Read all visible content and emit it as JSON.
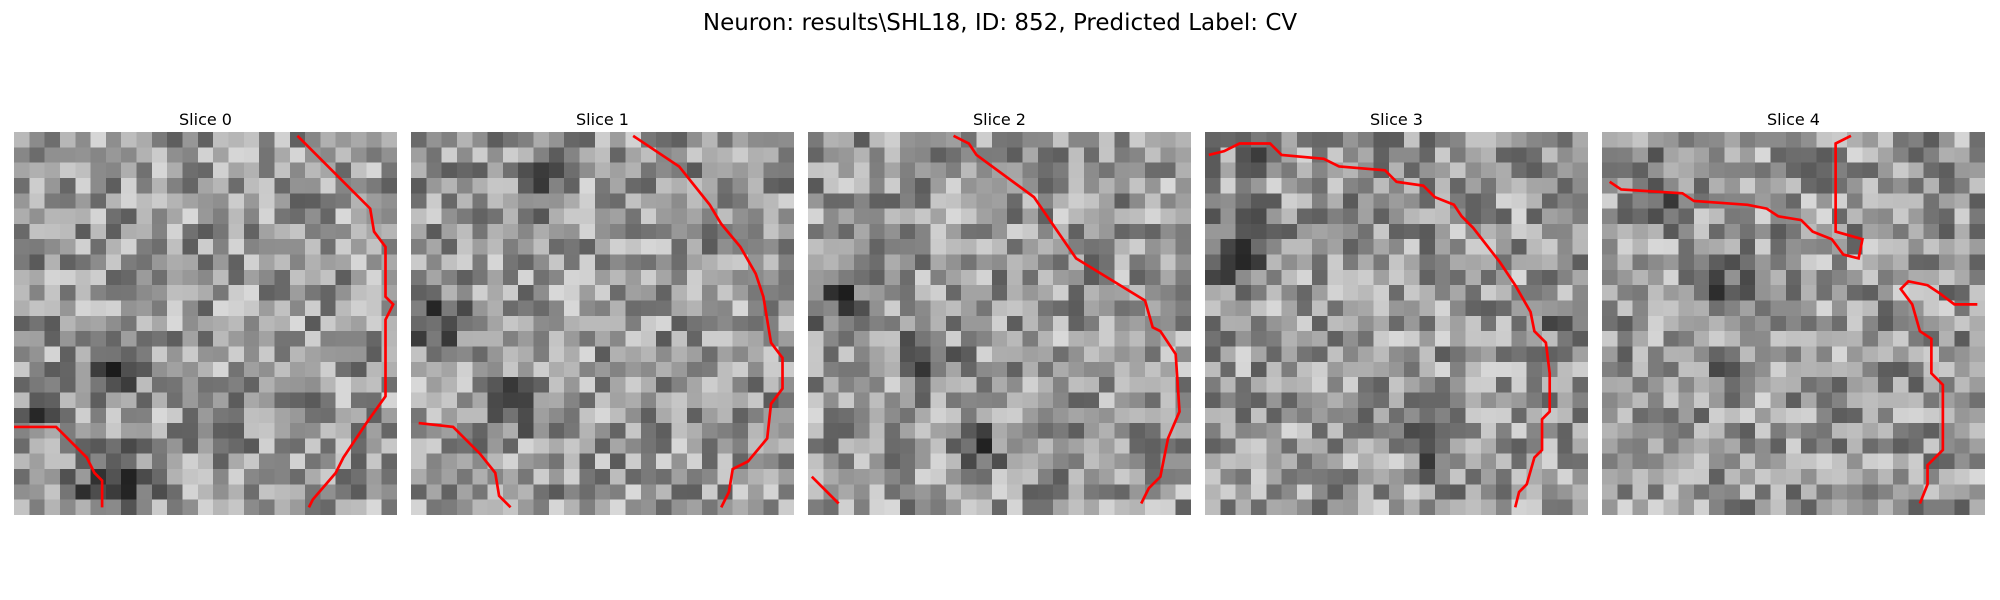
{
  "figure": {
    "title": "Neuron: results\\SHL18, ID: 852, Predicted Label: CV"
  },
  "style": {
    "contour_color": "#ff0000",
    "colormap": "gray",
    "background": "#ffffff"
  },
  "panels": [
    {
      "title": "Slice 0",
      "brightness_seed": 11,
      "dark_regions": [
        [
          0.25,
          0.92,
          0.16
        ],
        [
          0.05,
          0.75,
          0.08
        ],
        [
          0.28,
          0.62,
          0.1
        ]
      ],
      "contours": [
        [
          [
            0.74,
            0.01
          ],
          [
            0.93,
            0.2
          ],
          [
            0.94,
            0.26
          ],
          [
            0.97,
            0.3
          ],
          [
            0.97,
            0.43
          ],
          [
            0.99,
            0.45
          ],
          [
            0.97,
            0.49
          ],
          [
            0.97,
            0.69
          ],
          [
            0.92,
            0.76
          ],
          [
            0.9,
            0.79
          ],
          [
            0.86,
            0.85
          ],
          [
            0.84,
            0.89
          ],
          [
            0.78,
            0.96
          ],
          [
            0.77,
            0.98
          ]
        ],
        [
          [
            0.0,
            0.77
          ],
          [
            0.11,
            0.77
          ],
          [
            0.19,
            0.85
          ],
          [
            0.21,
            0.89
          ],
          [
            0.23,
            0.91
          ],
          [
            0.23,
            0.98
          ]
        ]
      ]
    },
    {
      "title": "Slice 1",
      "brightness_seed": 23,
      "dark_regions": [
        [
          0.08,
          0.5,
          0.12
        ],
        [
          0.25,
          0.72,
          0.1
        ],
        [
          0.35,
          0.15,
          0.08
        ]
      ],
      "contours": [
        [
          [
            0.58,
            0.01
          ],
          [
            0.7,
            0.09
          ],
          [
            0.74,
            0.14
          ],
          [
            0.78,
            0.19
          ],
          [
            0.81,
            0.24
          ],
          [
            0.86,
            0.3
          ],
          [
            0.9,
            0.37
          ],
          [
            0.92,
            0.43
          ],
          [
            0.94,
            0.55
          ],
          [
            0.97,
            0.59
          ],
          [
            0.97,
            0.67
          ],
          [
            0.94,
            0.71
          ],
          [
            0.93,
            0.8
          ],
          [
            0.88,
            0.86
          ],
          [
            0.84,
            0.88
          ],
          [
            0.83,
            0.94
          ],
          [
            0.81,
            0.98
          ]
        ],
        [
          [
            0.02,
            0.76
          ],
          [
            0.11,
            0.77
          ],
          [
            0.18,
            0.84
          ],
          [
            0.22,
            0.89
          ],
          [
            0.23,
            0.95
          ],
          [
            0.26,
            0.98
          ]
        ]
      ]
    },
    {
      "title": "Slice 2",
      "brightness_seed": 37,
      "dark_regions": [
        [
          0.08,
          0.45,
          0.12
        ],
        [
          0.3,
          0.6,
          0.1
        ],
        [
          0.45,
          0.82,
          0.08
        ]
      ],
      "contours": [
        [
          [
            0.38,
            0.01
          ],
          [
            0.42,
            0.03
          ],
          [
            0.44,
            0.06
          ],
          [
            0.59,
            0.17
          ],
          [
            0.7,
            0.33
          ],
          [
            0.88,
            0.44
          ],
          [
            0.9,
            0.51
          ],
          [
            0.92,
            0.52
          ],
          [
            0.96,
            0.58
          ],
          [
            0.97,
            0.73
          ],
          [
            0.94,
            0.8
          ],
          [
            0.92,
            0.9
          ],
          [
            0.89,
            0.93
          ],
          [
            0.87,
            0.97
          ]
        ],
        [
          [
            0.01,
            0.9
          ],
          [
            0.08,
            0.97
          ]
        ]
      ]
    },
    {
      "title": "Slice 3",
      "brightness_seed": 53,
      "dark_regions": [
        [
          0.08,
          0.3,
          0.14
        ],
        [
          0.15,
          0.05,
          0.07
        ],
        [
          0.6,
          0.8,
          0.12
        ],
        [
          0.92,
          0.48,
          0.06
        ]
      ],
      "contours": [
        [
          [
            0.01,
            0.06
          ],
          [
            0.05,
            0.05
          ],
          [
            0.09,
            0.03
          ],
          [
            0.17,
            0.03
          ],
          [
            0.2,
            0.06
          ],
          [
            0.31,
            0.07
          ],
          [
            0.35,
            0.09
          ],
          [
            0.47,
            0.1
          ],
          [
            0.5,
            0.13
          ],
          [
            0.57,
            0.14
          ],
          [
            0.6,
            0.17
          ],
          [
            0.65,
            0.19
          ],
          [
            0.67,
            0.22
          ],
          [
            0.7,
            0.25
          ],
          [
            0.77,
            0.34
          ],
          [
            0.81,
            0.4
          ],
          [
            0.85,
            0.47
          ],
          [
            0.86,
            0.52
          ],
          [
            0.89,
            0.55
          ],
          [
            0.9,
            0.63
          ],
          [
            0.9,
            0.73
          ],
          [
            0.88,
            0.75
          ],
          [
            0.88,
            0.83
          ],
          [
            0.86,
            0.85
          ],
          [
            0.84,
            0.92
          ],
          [
            0.82,
            0.94
          ],
          [
            0.81,
            0.98
          ]
        ]
      ]
    },
    {
      "title": "Slice 4",
      "brightness_seed": 71,
      "dark_regions": [
        [
          0.12,
          0.1,
          0.09
        ],
        [
          0.3,
          0.4,
          0.12
        ],
        [
          0.32,
          0.62,
          0.08
        ],
        [
          0.15,
          0.2,
          0.07
        ]
      ],
      "contours": [
        [
          [
            0.02,
            0.13
          ],
          [
            0.05,
            0.15
          ],
          [
            0.21,
            0.16
          ],
          [
            0.24,
            0.18
          ],
          [
            0.38,
            0.19
          ],
          [
            0.43,
            0.2
          ],
          [
            0.46,
            0.22
          ],
          [
            0.52,
            0.23
          ],
          [
            0.55,
            0.26
          ],
          [
            0.6,
            0.28
          ],
          [
            0.63,
            0.32
          ],
          [
            0.67,
            0.33
          ],
          [
            0.68,
            0.28
          ],
          [
            0.61,
            0.26
          ],
          [
            0.61,
            0.03
          ],
          [
            0.65,
            0.01
          ]
        ],
        [
          [
            0.98,
            0.45
          ],
          [
            0.92,
            0.45
          ],
          [
            0.88,
            0.42
          ],
          [
            0.85,
            0.4
          ],
          [
            0.8,
            0.39
          ],
          [
            0.78,
            0.41
          ],
          [
            0.81,
            0.45
          ],
          [
            0.83,
            0.52
          ],
          [
            0.86,
            0.54
          ],
          [
            0.86,
            0.63
          ],
          [
            0.89,
            0.66
          ],
          [
            0.89,
            0.83
          ],
          [
            0.85,
            0.87
          ],
          [
            0.85,
            0.92
          ],
          [
            0.83,
            0.97
          ]
        ]
      ]
    }
  ]
}
